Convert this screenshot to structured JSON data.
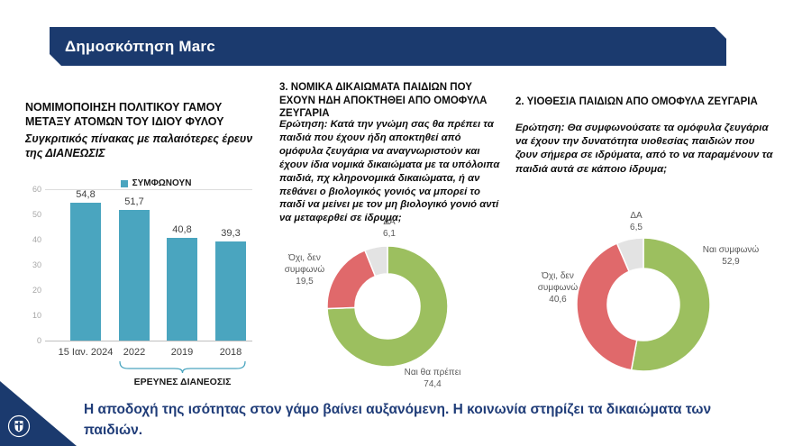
{
  "header": {
    "title": "Δημοσκόπηση Marc"
  },
  "panels": {
    "left": {
      "title": "ΝΟΜΙΜΟΠΟΙΗΣΗ ΠΟΛΙΤΙΚΟΥ ΓΑΜΟΥ\nΜΕΤΑΞΥ ΑΤΟΜΩΝ ΤΟΥ ΙΔΙΟΥ ΦΥΛΟΥ",
      "subtitle": "Συγκριτικός πίνακας με παλαιότερες έρευν\nτης ΔΙΑΝΕΩΣΙΣ"
    },
    "middle": {
      "title": "3. ΝΟΜΙΚΑ ΔΙΚΑΙΩΜΑΤΑ ΠΑΙΔΙΩΝ ΠΟΥ ΕΧΟΥΝ ΗΔΗ ΑΠΟΚΤΗΘΕΙ ΑΠΟ ΟΜΟΦΥΛΑ ΖΕΥΓΑΡΙΑ",
      "question": "Ερώτηση: Κατά την γνώμη σας θα πρέπει τα παιδιά που έχουν ήδη αποκτηθεί από ομόφυλα ζευγάρια να αναγνωριστούν και έχουν ίδια νομικά δικαιώματα με τα υπόλοιπα παιδιά, πχ κληρονομικά δικαιώματα, ή αν πεθάνει ο βιολογικός γονιός να μπορεί το παιδί να μείνει με τον μη βιολογικό γονιό αντί να μεταφερθεί σε ίδρυμα;"
    },
    "right": {
      "title": "2. ΥΙΟΘΕΣΙΑ ΠΑΙΔΙΩΝ ΑΠΟ ΟΜΟΦΥΛΑ ΖΕΥΓΑΡΙΑ",
      "question": "Ερώτηση: Θα συμφωνούσατε τα ομόφυλα ζευγάρια να έχουν την δυνατότητα υιοθεσίας παιδιών που ζουν σήμερα σε ιδρύματα, από το να παραμένουν τα παιδιά αυτά σε κάποιο ίδρυμα;"
    }
  },
  "chart_data": [
    {
      "type": "bar",
      "title": "ΝΟΜΙΜΟΠΟΙΗΣΗ ΠΟΛΙΤΙΚΟΥ ΓΑΜΟΥ ΜΕΤΑΞΥ ΑΤΟΜΩΝ ΤΟΥ ΙΔΙΟΥ ΦΥΛΟΥ",
      "legend": [
        "ΣΥΜΦΩΝΟΥΝ"
      ],
      "categories": [
        "15 Ιαν. 2024",
        "2022",
        "2019",
        "2018"
      ],
      "values": [
        54.8,
        51.7,
        40.8,
        39.3
      ],
      "value_labels": [
        "54,8",
        "51,7",
        "40,8",
        "39,3"
      ],
      "ylim": [
        0,
        60
      ],
      "yticks": [
        0,
        10,
        20,
        30,
        40,
        50,
        60
      ],
      "grid": "top-line-only",
      "legend_position": "top-center",
      "bracket": {
        "label": "ΕΡΕΥΝΕΣ ΔΙΑΝΕΟΣΙΣ",
        "from": "2022",
        "to": "2018"
      }
    },
    {
      "type": "pie",
      "subtype": "donut",
      "title": "3. ΝΟΜΙΚΑ ΔΙΚΑΙΩΜΑΤΑ ΠΑΙΔΙΩΝ ΠΟΥ ΕΧΟΥΝ ΗΔΗ ΑΠΟΚΤΗΘΕΙ ΑΠΟ ΟΜΟΦΥΛΑ ΖΕΥΓΑΡΙΑ",
      "slices": [
        {
          "label": "Ναι θα πρέπει",
          "value": 74.4,
          "display": "74,4",
          "color": "#9CBF5F"
        },
        {
          "label": "Όχι, δεν συμφωνώ",
          "value": 19.5,
          "display": "19,5",
          "color": "#E0696B"
        },
        {
          "label": "ΔΑ",
          "value": 6.1,
          "display": "6,1",
          "color": "#E3E3E3"
        }
      ]
    },
    {
      "type": "pie",
      "subtype": "donut",
      "title": "2. ΥΙΟΘΕΣΙΑ ΠΑΙΔΙΩΝ ΑΠΟ ΟΜΟΦΥΛΑ ΖΕΥΓΑΡΙΑ",
      "slices": [
        {
          "label": "Ναι συμφωνώ",
          "value": 52.9,
          "display": "52,9",
          "color": "#9CBF5F"
        },
        {
          "label": "Όχι, δεν συμφωνώ",
          "value": 40.6,
          "display": "40,6",
          "color": "#E0696B"
        },
        {
          "label": "ΔΑ",
          "value": 6.5,
          "display": "6,5",
          "color": "#E3E3E3"
        }
      ]
    }
  ],
  "footer": {
    "statement": "Η αποδοχή της ισότητας στον γάμο βαίνει αυξανόμενη. Η κοινωνία στηρίζει τα δικαιώματα των παιδιών.",
    "logo": "greek-government-emblem"
  },
  "colors": {
    "header_bg": "#1B3A6E",
    "bar_teal": "#4AA5BF",
    "donut_green": "#9CBF5F",
    "donut_red": "#E0696B",
    "donut_gray": "#E3E3E3",
    "statement_text": "#1F3C78"
  }
}
